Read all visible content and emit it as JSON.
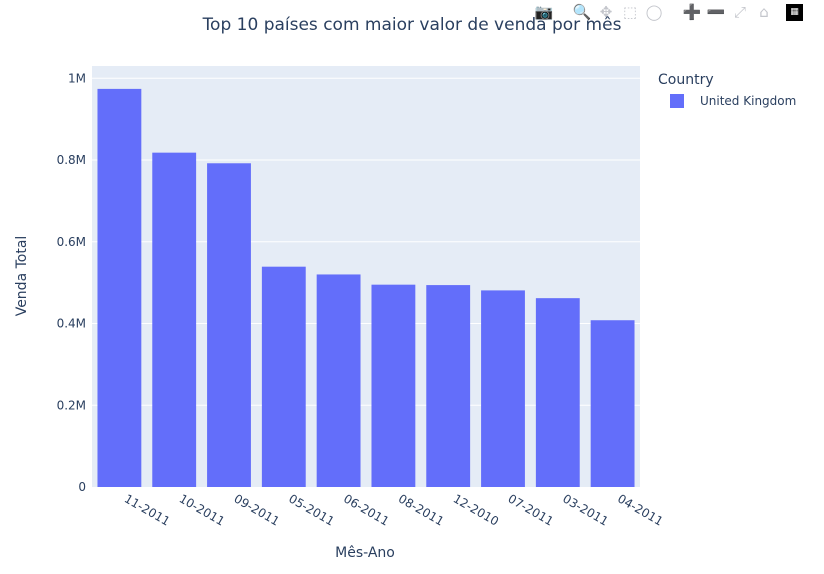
{
  "modebar": {
    "buttons": [
      {
        "icon": "camera-icon",
        "label": "Download plot as a png"
      },
      {
        "icon": "zoom-icon",
        "label": "Zoom"
      },
      {
        "icon": "pan-icon",
        "label": "Pan"
      },
      {
        "icon": "box-select-icon",
        "label": "Box Select"
      },
      {
        "icon": "lasso-select-icon",
        "label": "Lasso Select"
      },
      {
        "icon": "zoom-in-icon",
        "label": "Zoom in"
      },
      {
        "icon": "zoom-out-icon",
        "label": "Zoom out"
      },
      {
        "icon": "autoscale-icon",
        "label": "Autoscale"
      },
      {
        "icon": "reset-axes-icon",
        "label": "Reset axes"
      },
      {
        "icon": "plotly-logo-icon",
        "label": "Produced with Plotly"
      }
    ]
  },
  "chart_data": {
    "type": "bar",
    "title": "Top 10 países com maior valor de venda por mês",
    "xlabel": "Mês-Ano",
    "ylabel": "Venda Total",
    "categories": [
      "11-2011",
      "10-2011",
      "09-2011",
      "05-2011",
      "06-2011",
      "08-2011",
      "12-2010",
      "07-2011",
      "03-2011",
      "04-2011"
    ],
    "series": [
      {
        "name": "United Kingdom",
        "color": "#636efa",
        "values": [
          974000,
          818000,
          792000,
          539000,
          520000,
          495000,
          494000,
          481000,
          462000,
          408000
        ]
      }
    ],
    "ylim": [
      0,
      1030000
    ],
    "yticks": [
      0,
      200000,
      400000,
      600000,
      800000,
      1000000
    ],
    "ytick_labels": [
      "0",
      "0.2M",
      "0.4M",
      "0.6M",
      "0.8M",
      "1M"
    ],
    "legend": {
      "title": "Country",
      "position": "right"
    },
    "grid": true,
    "plot_bg": "#e5ecf6"
  }
}
